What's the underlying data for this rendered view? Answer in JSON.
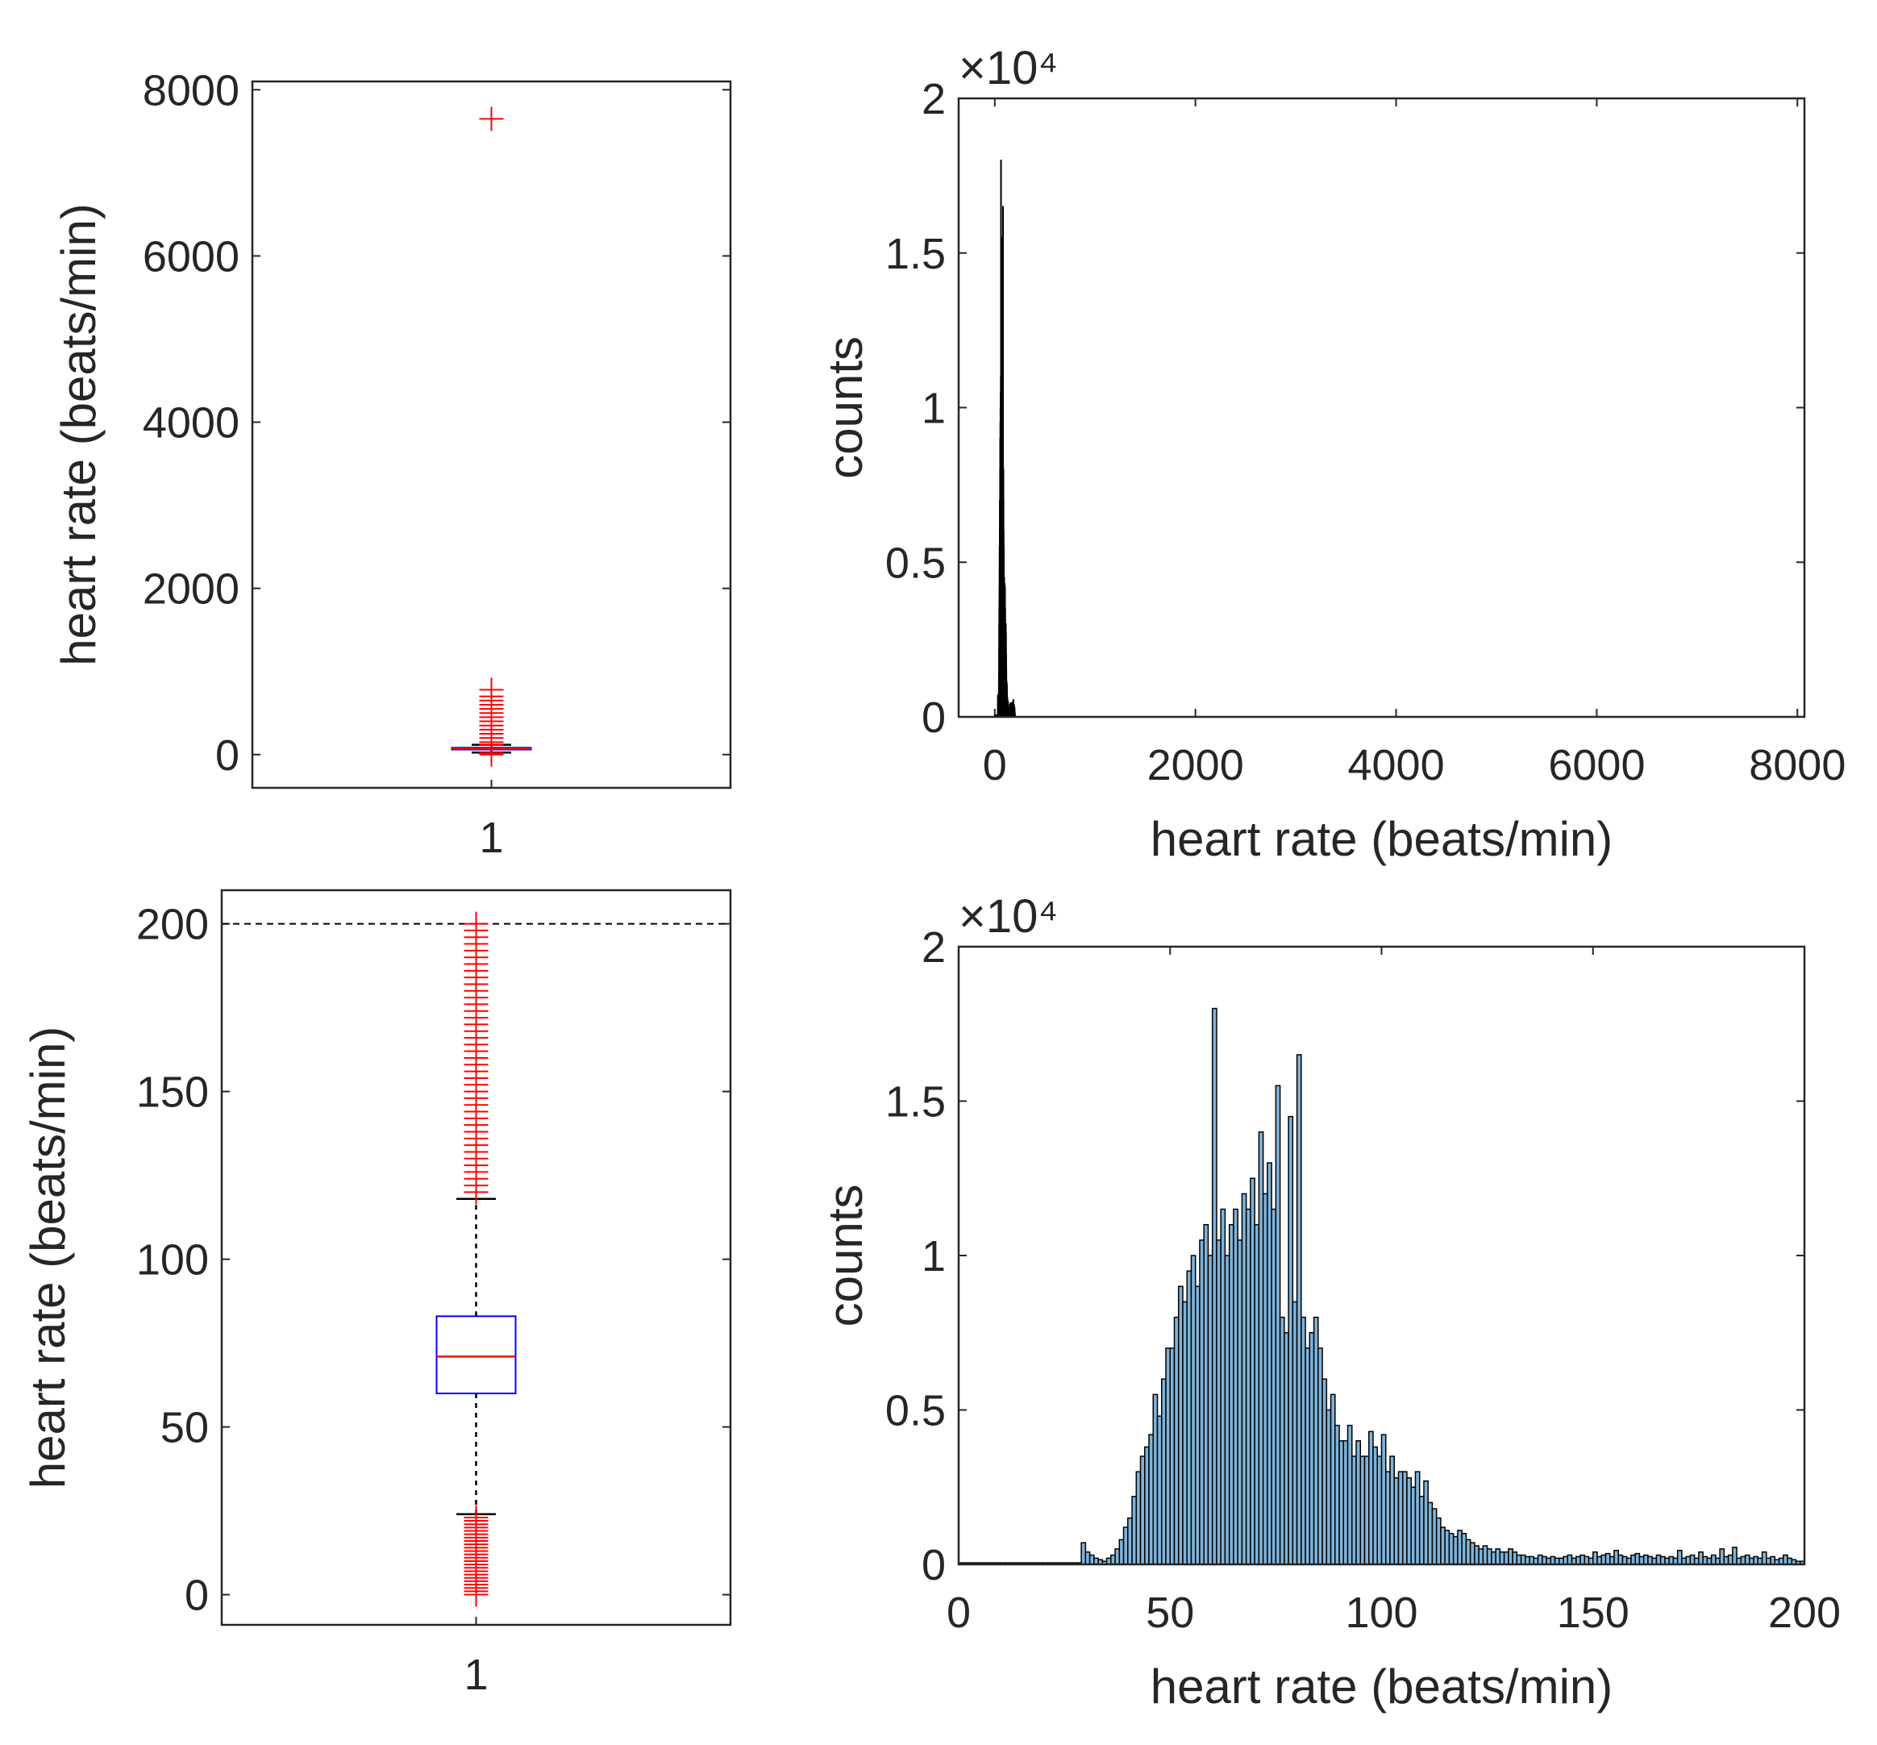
{
  "chart_data": [
    {
      "type": "boxplot",
      "categories": [
        "1"
      ],
      "ylabel": "heart rate (beats/min)",
      "ylim": [
        -400,
        8100
      ],
      "yticks": [
        0,
        2000,
        4000,
        6000,
        8000
      ],
      "q1": 60,
      "median": 71,
      "q3": 83,
      "whisker_low": 24,
      "whisker_high": 118,
      "outliers": [
        7650,
        780,
        700,
        650,
        600,
        550,
        500,
        450,
        400,
        350,
        300,
        250,
        200,
        150,
        120,
        0,
        5,
        10,
        15,
        20
      ],
      "box_color": "#0000ff",
      "median_color": "#ff0000",
      "outlier_color": "#ff0000"
    },
    {
      "type": "histogram",
      "ylabel": "counts",
      "xlabel": "heart rate (beats/min)",
      "y_exponent_label": "×10⁴",
      "xlim": [
        -360,
        8070
      ],
      "xticks": [
        0,
        2000,
        4000,
        6000,
        8000
      ],
      "ylim": [
        0,
        20000
      ],
      "yticks": [
        0,
        {
          "value": 5000,
          "label": "0.5"
        },
        {
          "value": 10000,
          "label": "1"
        },
        {
          "value": 15000,
          "label": "1.5"
        },
        {
          "value": 20000,
          "label": "2"
        }
      ],
      "color": "#7fb3d9",
      "edgecolor": "#000000",
      "bins": [
        0,
        1,
        2,
        3,
        4,
        5,
        6,
        7,
        8,
        9,
        10,
        11,
        12,
        13,
        14,
        15,
        16,
        17,
        18,
        19,
        20,
        21,
        22,
        23,
        24,
        25,
        26,
        27,
        28,
        29,
        30,
        31,
        32,
        33,
        34,
        35,
        36,
        37,
        38,
        39,
        40,
        41,
        42,
        43,
        44,
        45,
        46,
        47,
        48,
        49,
        50,
        51,
        52,
        53,
        54,
        55,
        56,
        57,
        58,
        59,
        60,
        61,
        62,
        63,
        64,
        65,
        66,
        67,
        68,
        69,
        70,
        71,
        72,
        73,
        74,
        75,
        76,
        77,
        78,
        79,
        80,
        81,
        82,
        83,
        84,
        85,
        86,
        87,
        88,
        89,
        90,
        91,
        92,
        93,
        94,
        95,
        96,
        97,
        98,
        99,
        100,
        101,
        102,
        103,
        104,
        105,
        106,
        107,
        108,
        109,
        110,
        111,
        112,
        113,
        114,
        115,
        116,
        117,
        118,
        119,
        120,
        121,
        122,
        123,
        124,
        125,
        126,
        127,
        128,
        129,
        130,
        131,
        132,
        133,
        134,
        135,
        136,
        137,
        138,
        139,
        140,
        141,
        142,
        143,
        144,
        145,
        146,
        147,
        148,
        149,
        150,
        151,
        152,
        153,
        154,
        155,
        156,
        157,
        158,
        159,
        160,
        161,
        162,
        163,
        164,
        165,
        166,
        167,
        168,
        169,
        170,
        171,
        172,
        173,
        174,
        175,
        176,
        177,
        178,
        179,
        180,
        181,
        182,
        183,
        184,
        185,
        186,
        187,
        188,
        189,
        190,
        191,
        192,
        193,
        194,
        195,
        196,
        197,
        198,
        199,
        200
      ],
      "counts": [
        50,
        50,
        50,
        50,
        50,
        50,
        50,
        50,
        50,
        50,
        50,
        50,
        50,
        50,
        50,
        50,
        50,
        50,
        50,
        50,
        50,
        50,
        50,
        50,
        50,
        50,
        50,
        50,
        50,
        700,
        400,
        300,
        200,
        150,
        100,
        200,
        300,
        500,
        800,
        1200,
        1500,
        2200,
        3000,
        3500,
        3800,
        4200,
        5500,
        4800,
        6000,
        7000,
        7000,
        8000,
        9000,
        8500,
        9500,
        10000,
        9000,
        10500,
        11000,
        10000,
        18000,
        10500,
        11500,
        10000,
        11000,
        11500,
        10500,
        12000,
        11500,
        12500,
        11000,
        14000,
        12000,
        13000,
        11500,
        15500,
        8000,
        7500,
        14500,
        8500,
        16500,
        8000,
        7000,
        7500,
        8000,
        7000,
        6000,
        5000,
        5500,
        4500,
        4000,
        4000,
        4500,
        3500,
        4000,
        3500,
        3500,
        4300,
        3800,
        3500,
        4200,
        3000,
        3500,
        2800,
        3000,
        3000,
        2800,
        2500,
        3000,
        2200,
        2700,
        2000,
        1800,
        1500,
        1200,
        1100,
        1000,
        900,
        1100,
        1000,
        800,
        700,
        600,
        500,
        600,
        500,
        400,
        500,
        400,
        400,
        500,
        400,
        300,
        300,
        250,
        250,
        200,
        300,
        250,
        200,
        250,
        200,
        200,
        250,
        300,
        200,
        250,
        300,
        250,
        200,
        400,
        250,
        300,
        350,
        250,
        450,
        300,
        250,
        200,
        300,
        350,
        250,
        300,
        250,
        200,
        300,
        250,
        200,
        250,
        200,
        450,
        200,
        250,
        300,
        200,
        400,
        250,
        200,
        300,
        200,
        500,
        250,
        300,
        550,
        200,
        250,
        300,
        200,
        250,
        200,
        400,
        200,
        250,
        150,
        200,
        300,
        200,
        150,
        100,
        100
      ]
    },
    {
      "type": "boxplot",
      "categories": [
        "1"
      ],
      "ylabel": "heart rate (beats/min)",
      "ylim": [
        -9,
        210
      ],
      "yticks": [
        0,
        50,
        100,
        150,
        200
      ],
      "reference_line": 200,
      "q1": 60,
      "median": 71,
      "q3": 83,
      "whisker_low": 24,
      "whisker_high": 118,
      "outliers": [
        120,
        122,
        124,
        126,
        128,
        130,
        132,
        134,
        136,
        138,
        140,
        142,
        144,
        146,
        148,
        150,
        152,
        154,
        156,
        158,
        160,
        162,
        164,
        166,
        168,
        170,
        172,
        174,
        176,
        178,
        180,
        182,
        184,
        186,
        188,
        190,
        192,
        194,
        196,
        198,
        200,
        0,
        1,
        2,
        3,
        4,
        5,
        6,
        7,
        8,
        9,
        10,
        11,
        12,
        13,
        14,
        15,
        16,
        17,
        18,
        19,
        20,
        21,
        22,
        23
      ],
      "box_color": "#0000ff",
      "median_color": "#ff0000",
      "outlier_color": "#ff0000"
    },
    {
      "type": "histogram",
      "ylabel": "counts",
      "xlabel": "heart rate (beats/min)",
      "y_exponent_label": "×10⁴",
      "xlim": [
        0,
        200
      ],
      "xticks": [
        0,
        50,
        100,
        150,
        200
      ],
      "ylim": [
        0,
        20000
      ],
      "yticks": [
        0,
        {
          "value": 5000,
          "label": "0.5"
        },
        {
          "value": 10000,
          "label": "1"
        },
        {
          "value": 15000,
          "label": "1.5"
        },
        {
          "value": 20000,
          "label": "2"
        }
      ],
      "color": "#7fb3d9",
      "edgecolor": "#000000",
      "bins": [
        0,
        1,
        2,
        3,
        4,
        5,
        6,
        7,
        8,
        9,
        10,
        11,
        12,
        13,
        14,
        15,
        16,
        17,
        18,
        19,
        20,
        21,
        22,
        23,
        24,
        25,
        26,
        27,
        28,
        29,
        30,
        31,
        32,
        33,
        34,
        35,
        36,
        37,
        38,
        39,
        40,
        41,
        42,
        43,
        44,
        45,
        46,
        47,
        48,
        49,
        50,
        51,
        52,
        53,
        54,
        55,
        56,
        57,
        58,
        59,
        60,
        61,
        62,
        63,
        64,
        65,
        66,
        67,
        68,
        69,
        70,
        71,
        72,
        73,
        74,
        75,
        76,
        77,
        78,
        79,
        80,
        81,
        82,
        83,
        84,
        85,
        86,
        87,
        88,
        89,
        90,
        91,
        92,
        93,
        94,
        95,
        96,
        97,
        98,
        99,
        100,
        101,
        102,
        103,
        104,
        105,
        106,
        107,
        108,
        109,
        110,
        111,
        112,
        113,
        114,
        115,
        116,
        117,
        118,
        119,
        120,
        121,
        122,
        123,
        124,
        125,
        126,
        127,
        128,
        129,
        130,
        131,
        132,
        133,
        134,
        135,
        136,
        137,
        138,
        139,
        140,
        141,
        142,
        143,
        144,
        145,
        146,
        147,
        148,
        149,
        150,
        151,
        152,
        153,
        154,
        155,
        156,
        157,
        158,
        159,
        160,
        161,
        162,
        163,
        164,
        165,
        166,
        167,
        168,
        169,
        170,
        171,
        172,
        173,
        174,
        175,
        176,
        177,
        178,
        179,
        180,
        181,
        182,
        183,
        184,
        185,
        186,
        187,
        188,
        189,
        190,
        191,
        192,
        193,
        194,
        195,
        196,
        197,
        198,
        199,
        200
      ],
      "counts": [
        50,
        50,
        50,
        50,
        50,
        50,
        50,
        50,
        50,
        50,
        50,
        50,
        50,
        50,
        50,
        50,
        50,
        50,
        50,
        50,
        50,
        50,
        50,
        50,
        50,
        50,
        50,
        50,
        50,
        700,
        400,
        300,
        200,
        150,
        100,
        200,
        300,
        500,
        800,
        1200,
        1500,
        2200,
        3000,
        3500,
        3800,
        4200,
        5500,
        4800,
        6000,
        7000,
        7000,
        8000,
        9000,
        8500,
        9500,
        10000,
        9000,
        10500,
        11000,
        10000,
        18000,
        10500,
        11500,
        10000,
        11000,
        11500,
        10500,
        12000,
        11500,
        12500,
        11000,
        14000,
        12000,
        13000,
        11500,
        15500,
        8000,
        7500,
        14500,
        8500,
        16500,
        8000,
        7000,
        7500,
        8000,
        7000,
        6000,
        5000,
        5500,
        4500,
        4000,
        4000,
        4500,
        3500,
        4000,
        3500,
        3500,
        4300,
        3800,
        3500,
        4200,
        3000,
        3500,
        2800,
        3000,
        3000,
        2800,
        2500,
        3000,
        2200,
        2700,
        2000,
        1800,
        1500,
        1200,
        1100,
        1000,
        900,
        1100,
        1000,
        800,
        700,
        600,
        500,
        600,
        500,
        400,
        500,
        400,
        400,
        500,
        400,
        300,
        300,
        250,
        250,
        200,
        300,
        250,
        200,
        250,
        200,
        200,
        250,
        300,
        200,
        250,
        300,
        250,
        200,
        400,
        250,
        300,
        350,
        250,
        450,
        300,
        250,
        200,
        300,
        350,
        250,
        300,
        250,
        200,
        300,
        250,
        200,
        250,
        200,
        450,
        200,
        250,
        300,
        200,
        400,
        250,
        200,
        300,
        200,
        500,
        250,
        300,
        550,
        200,
        250,
        300,
        200,
        250,
        200,
        400,
        200,
        250,
        150,
        200,
        300,
        200,
        150,
        100,
        100
      ]
    }
  ]
}
